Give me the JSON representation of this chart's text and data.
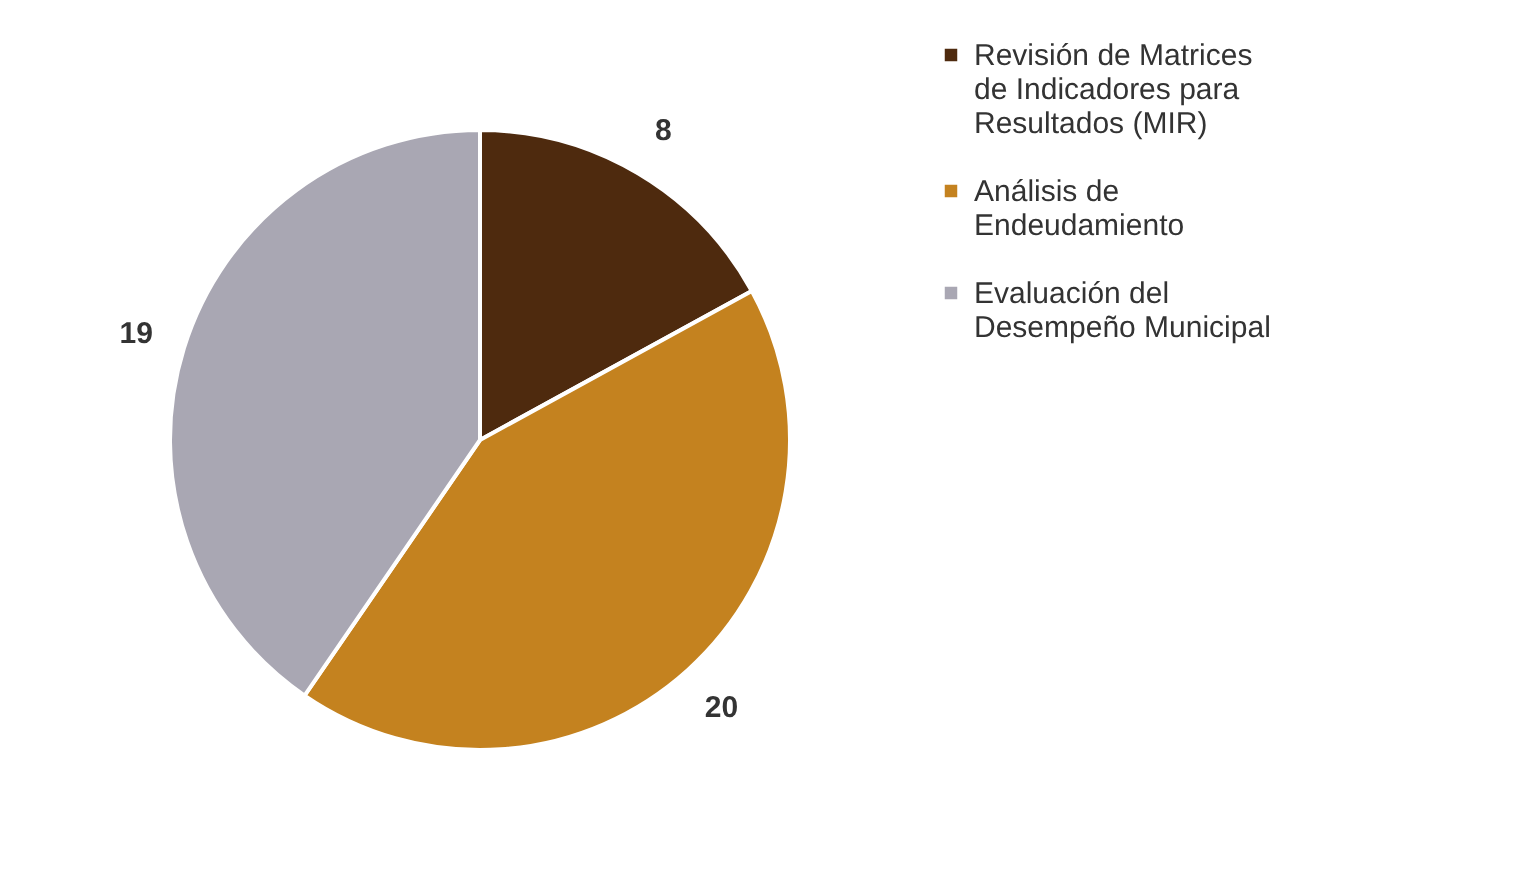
{
  "chart_data": {
    "type": "pie",
    "categories": [
      "Revisión de Matrices de Indicadores para Resultados (MIR)",
      "Análisis de Endeudamiento",
      "Evaluación del Desempeño Municipal"
    ],
    "values": [
      8,
      20,
      19
    ],
    "colors": [
      "#4e2a0e",
      "#c4821f",
      "#a9a7b3"
    ],
    "data_labels": true,
    "legend": "right"
  }
}
